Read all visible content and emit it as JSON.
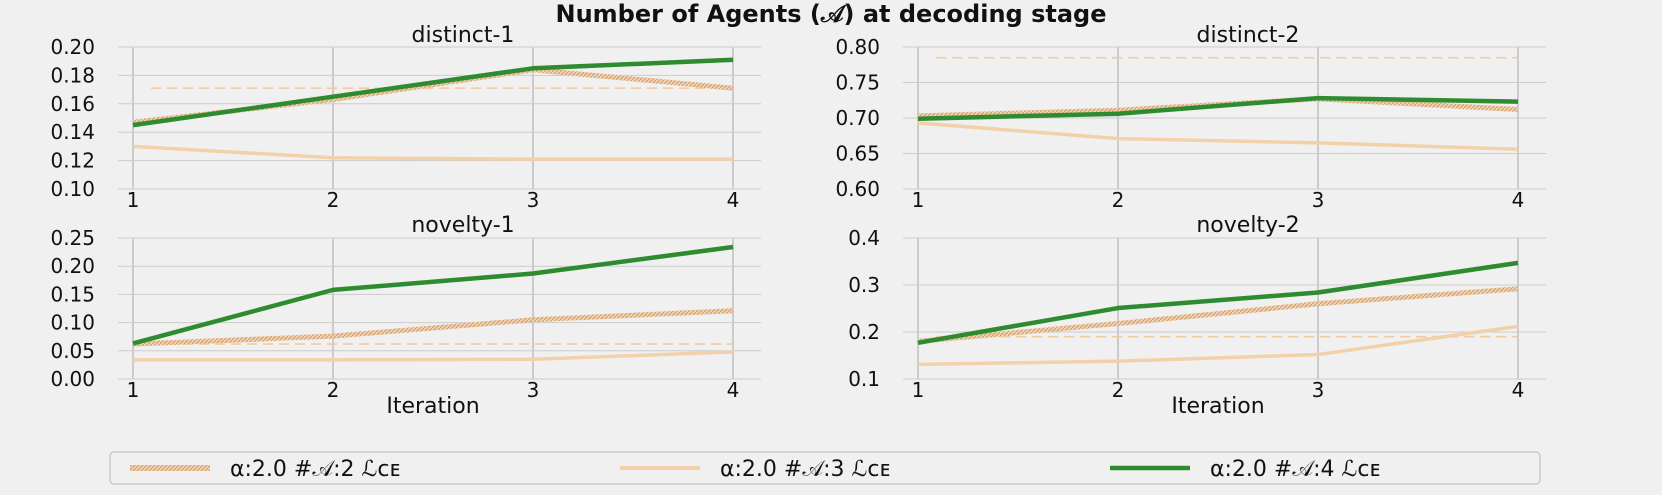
{
  "figure": {
    "suptitle": "Number of Agents (𝒜) at decoding stage",
    "colors": {
      "background": "#f0f0f0",
      "grid": "#cbcbcb",
      "hatched_line": "#e8b98a",
      "plain_line": "#f2d0aa",
      "green_line": "#2e8b30",
      "dashed_baseline": "#f5c9a0"
    }
  },
  "legend": {
    "placement": "bottom-center",
    "entries": [
      {
        "label": "α:2.0 #𝒜:2 ℒᴄᴇ",
        "style": "hatched"
      },
      {
        "label": "α:2.0 #𝒜:3 ℒᴄᴇ",
        "style": "plain"
      },
      {
        "label": "α:2.0 #𝒜:4 ℒᴄᴇ",
        "style": "green"
      }
    ]
  },
  "chart_data": [
    {
      "type": "line",
      "title": "distinct-1",
      "xlabel": "",
      "x": [
        1,
        2,
        3,
        4
      ],
      "xticks": [
        "1",
        "2",
        "3",
        "4"
      ],
      "ylim": [
        0.1,
        0.2
      ],
      "yticks": [
        "0.10",
        "0.12",
        "0.14",
        "0.16",
        "0.18",
        "0.20"
      ],
      "baseline": 0.171,
      "series": [
        {
          "style": "hatched",
          "values": [
            0.147,
            0.163,
            0.184,
            0.171
          ]
        },
        {
          "style": "plain",
          "values": [
            0.13,
            0.122,
            0.121,
            0.121
          ]
        },
        {
          "style": "green",
          "values": [
            0.145,
            0.165,
            0.185,
            0.191
          ]
        }
      ]
    },
    {
      "type": "line",
      "title": "distinct-2",
      "xlabel": "",
      "x": [
        1,
        2,
        3,
        4
      ],
      "xticks": [
        "1",
        "2",
        "3",
        "4"
      ],
      "ylim": [
        0.6,
        0.8
      ],
      "yticks": [
        "0.60",
        "0.65",
        "0.70",
        "0.75",
        "0.80"
      ],
      "baseline": 0.785,
      "series": [
        {
          "style": "hatched",
          "values": [
            0.703,
            0.711,
            0.727,
            0.712
          ]
        },
        {
          "style": "plain",
          "values": [
            0.693,
            0.671,
            0.665,
            0.656
          ]
        },
        {
          "style": "green",
          "values": [
            0.699,
            0.706,
            0.728,
            0.723
          ]
        }
      ]
    },
    {
      "type": "line",
      "title": "novelty-1",
      "xlabel": "Iteration",
      "x": [
        1,
        2,
        3,
        4
      ],
      "xticks": [
        "1",
        "2",
        "3",
        "4"
      ],
      "ylim": [
        0.0,
        0.25
      ],
      "yticks": [
        "0.00",
        "0.05",
        "0.10",
        "0.15",
        "0.20",
        "0.25"
      ],
      "baseline": 0.062,
      "series": [
        {
          "style": "hatched",
          "values": [
            0.062,
            0.076,
            0.105,
            0.121
          ]
        },
        {
          "style": "plain",
          "values": [
            0.034,
            0.034,
            0.035,
            0.048
          ]
        },
        {
          "style": "green",
          "values": [
            0.063,
            0.158,
            0.187,
            0.234
          ]
        }
      ]
    },
    {
      "type": "line",
      "title": "novelty-2",
      "xlabel": "Iteration",
      "x": [
        1,
        2,
        3,
        4
      ],
      "xticks": [
        "1",
        "2",
        "3",
        "4"
      ],
      "ylim": [
        0.1,
        0.4
      ],
      "yticks": [
        "0.1",
        "0.2",
        "0.3",
        "0.4"
      ],
      "baseline": 0.19,
      "series": [
        {
          "style": "hatched",
          "values": [
            0.18,
            0.218,
            0.26,
            0.292
          ]
        },
        {
          "style": "plain",
          "values": [
            0.131,
            0.138,
            0.152,
            0.212
          ]
        },
        {
          "style": "green",
          "values": [
            0.177,
            0.251,
            0.284,
            0.347
          ]
        }
      ]
    }
  ]
}
